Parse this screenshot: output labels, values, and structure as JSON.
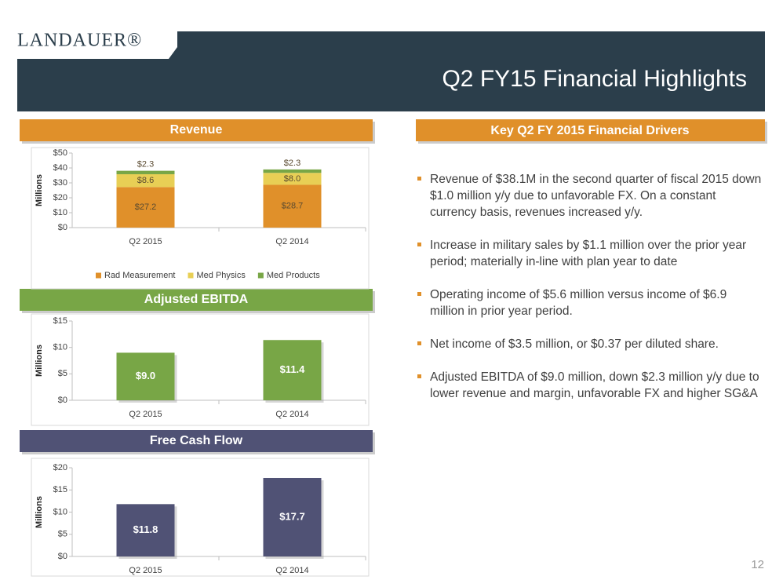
{
  "header": {
    "logo": "LANDAUER®",
    "title": "Q2 FY15 Financial Highlights"
  },
  "chart_data": [
    {
      "type": "bar",
      "stacked": true,
      "title": "Revenue",
      "ylabel": "Millions",
      "categories": [
        "Q2 2015",
        "Q2 2014"
      ],
      "series": [
        {
          "name": "Rad Measurement",
          "color": "#e0902a",
          "values": [
            27.2,
            28.7
          ],
          "value_labels": [
            "$27.2",
            "$28.7"
          ]
        },
        {
          "name": "Med Physics",
          "color": "#e8cf55",
          "values": [
            8.6,
            8.0
          ],
          "value_labels": [
            "$8.6",
            "$8.0"
          ]
        },
        {
          "name": "Med Products",
          "color": "#78a646",
          "values": [
            2.3,
            2.3
          ],
          "value_labels": [
            "$2.3",
            "$2.3"
          ]
        }
      ],
      "ylim": [
        0,
        50
      ],
      "yticks": [
        {
          "value": 0,
          "label": "$0"
        },
        {
          "value": 10,
          "label": "$10"
        },
        {
          "value": 20,
          "label": "$20"
        },
        {
          "value": 30,
          "label": "$30"
        },
        {
          "value": 40,
          "label": "$40"
        },
        {
          "value": 50,
          "label": "$50"
        }
      ],
      "legend": "bottom"
    },
    {
      "type": "bar",
      "title": "Adjusted EBITDA",
      "ylabel": "Millions",
      "categories": [
        "Q2 2015",
        "Q2 2014"
      ],
      "values": [
        9.0,
        11.4
      ],
      "value_labels": [
        "$9.0",
        "$11.4"
      ],
      "color": "#78a646",
      "ylim": [
        0,
        15
      ],
      "yticks": [
        {
          "value": 0,
          "label": "$0"
        },
        {
          "value": 5,
          "label": "$5"
        },
        {
          "value": 10,
          "label": "$10"
        },
        {
          "value": 15,
          "label": "$15"
        }
      ]
    },
    {
      "type": "bar",
      "title": "Free Cash Flow",
      "ylabel": "Millions",
      "categories": [
        "Q2 2015",
        "Q2 2014"
      ],
      "values": [
        11.8,
        17.7
      ],
      "value_labels": [
        "$11.8",
        "$17.7"
      ],
      "color": "#505275",
      "ylim": [
        0,
        20
      ],
      "yticks": [
        {
          "value": 0,
          "label": "$0"
        },
        {
          "value": 5,
          "label": "$5"
        },
        {
          "value": 10,
          "label": "$10"
        },
        {
          "value": 15,
          "label": "$15"
        },
        {
          "value": 20,
          "label": "$20"
        }
      ]
    }
  ],
  "drivers": {
    "title": "Key Q2 FY 2015 Financial Drivers",
    "bullets": [
      "Revenue of $38.1M in the second quarter of fiscal 2015 down $1.0 million y/y due to unfavorable FX. On a constant currency basis, revenues increased y/y.",
      "Increase in military sales by $1.1 million over the prior year period; materially in-line with plan year to date",
      "Operating income of $5.6 million versus income of $6.9 million in prior year period.",
      "Net income of $3.5 million, or $0.37 per diluted share.",
      "Adjusted EBITDA of $9.0 million, down $2.3 million y/y due to lower revenue and margin, unfavorable FX and higher SG&A"
    ]
  },
  "page_number": "12"
}
